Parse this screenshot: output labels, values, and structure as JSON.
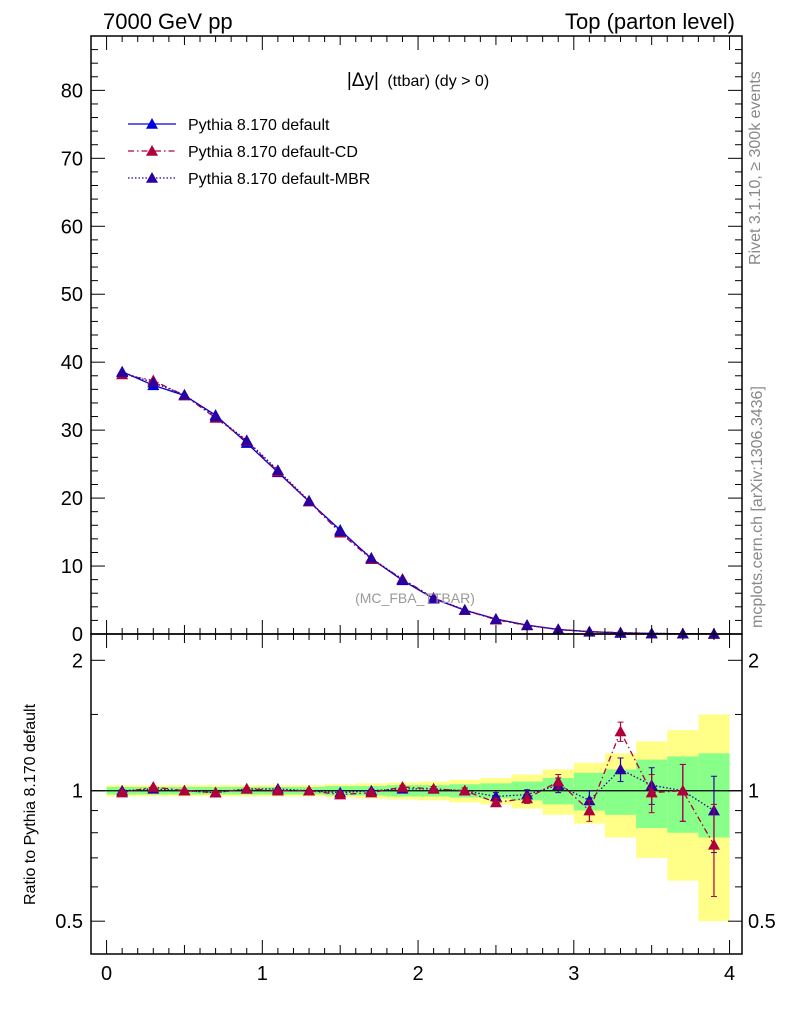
{
  "header": {
    "left": "7000 GeV pp",
    "right": "Top (parton level)"
  },
  "side_labels": {
    "rivet": "Rivet 3.1.10, ≥ 300k events",
    "mcplots": "mcplots.cern.ch [arXiv:1306.3436]"
  },
  "main_panel": {
    "title_symbol": "|Δy|",
    "title_rest": "(ttbar) (dy > 0)",
    "watermark": "(MC_FBA_TTBAR)"
  },
  "ratio_panel": {
    "ylabel": "Ratio to Pythia 8.170 default"
  },
  "colors": {
    "default": "#0000dd",
    "cd": "#b0003c",
    "mbr": "#2a00a0",
    "band_outer": "#ffff88",
    "band_inner": "#88ff88"
  },
  "chart_data": [
    {
      "type": "line",
      "panel": "main",
      "xlim": [
        -0.1,
        4.08
      ],
      "ylim": [
        0,
        88
      ],
      "yticks": [
        "0",
        "10",
        "20",
        "30",
        "40",
        "50",
        "60",
        "70",
        "80"
      ],
      "x": [
        0.1,
        0.3,
        0.5,
        0.7,
        0.9,
        1.1,
        1.3,
        1.5,
        1.7,
        1.9,
        2.1,
        2.3,
        2.5,
        2.7,
        2.9,
        3.1,
        3.3,
        3.5,
        3.7,
        3.9
      ],
      "series": [
        {
          "name": "Pythia 8.170 default",
          "style": "solid",
          "values": [
            38.6,
            36.6,
            35.1,
            32.2,
            28.1,
            23.8,
            19.5,
            15.3,
            11.1,
            7.9,
            5.2,
            3.5,
            2.2,
            1.3,
            0.65,
            0.35,
            0.16,
            0.08,
            0.04,
            0.02
          ]
        },
        {
          "name": "Pythia 8.170 default-CD",
          "style": "dashdot",
          "values": [
            38.2,
            37.3,
            35.1,
            31.8,
            28.4,
            23.9,
            19.5,
            14.9,
            11.0,
            8.1,
            5.3,
            3.5,
            2.1,
            1.25,
            0.7,
            0.32,
            0.22,
            0.08,
            0.04,
            0.015
          ]
        },
        {
          "name": "Pythia 8.170 default-MBR",
          "style": "dotted",
          "values": [
            38.5,
            37.0,
            35.2,
            32.0,
            28.5,
            24.1,
            19.6,
            15.1,
            11.2,
            8.0,
            5.3,
            3.55,
            2.2,
            1.3,
            0.68,
            0.34,
            0.18,
            0.09,
            0.04,
            0.02
          ]
        }
      ]
    },
    {
      "type": "line",
      "panel": "ratio",
      "xlim": [
        -0.1,
        4.08
      ],
      "ylim": [
        0.42,
        2.3
      ],
      "yscale": "log",
      "xticks": [
        "0",
        "1",
        "2",
        "3",
        "4"
      ],
      "yticks_left": [
        "0.5",
        "1",
        "2"
      ],
      "yticks_right": [
        "0.5",
        "1",
        "2"
      ],
      "x": [
        0.1,
        0.3,
        0.5,
        0.7,
        0.9,
        1.1,
        1.3,
        1.5,
        1.7,
        1.9,
        2.1,
        2.3,
        2.5,
        2.7,
        2.9,
        3.1,
        3.3,
        3.5,
        3.7,
        3.9
      ],
      "bands": {
        "inner": [
          0.02,
          0.02,
          0.02,
          0.02,
          0.02,
          0.02,
          0.02,
          0.025,
          0.025,
          0.03,
          0.03,
          0.035,
          0.04,
          0.05,
          0.07,
          0.1,
          0.12,
          0.18,
          0.2,
          0.22
        ],
        "outer": [
          0.03,
          0.03,
          0.03,
          0.03,
          0.03,
          0.03,
          0.03,
          0.035,
          0.04,
          0.045,
          0.05,
          0.06,
          0.07,
          0.09,
          0.12,
          0.16,
          0.22,
          0.3,
          0.38,
          0.5
        ]
      },
      "series": [
        {
          "name": "Pythia 8.170 default-CD",
          "values": [
            0.99,
            1.02,
            1.0,
            0.99,
            1.01,
            1.0,
            1.0,
            0.98,
            0.99,
            1.02,
            1.01,
            1.0,
            0.94,
            0.96,
            1.05,
            0.9,
            1.37,
            0.99,
            1.0,
            0.75
          ],
          "errors": [
            0.005,
            0.005,
            0.005,
            0.005,
            0.005,
            0.005,
            0.006,
            0.007,
            0.008,
            0.01,
            0.012,
            0.015,
            0.02,
            0.025,
            0.04,
            0.05,
            0.07,
            0.1,
            0.15,
            0.18
          ]
        },
        {
          "name": "Pythia 8.170 default-MBR",
          "values": [
            1.0,
            1.01,
            1.0,
            0.99,
            1.01,
            1.01,
            1.0,
            0.99,
            1.0,
            1.01,
            1.01,
            1.0,
            0.97,
            0.98,
            1.03,
            0.95,
            1.12,
            1.03,
            1.0,
            0.9
          ],
          "errors": [
            0.005,
            0.005,
            0.005,
            0.005,
            0.005,
            0.005,
            0.006,
            0.007,
            0.008,
            0.01,
            0.012,
            0.015,
            0.02,
            0.025,
            0.04,
            0.05,
            0.07,
            0.1,
            0.15,
            0.18
          ]
        }
      ]
    }
  ]
}
